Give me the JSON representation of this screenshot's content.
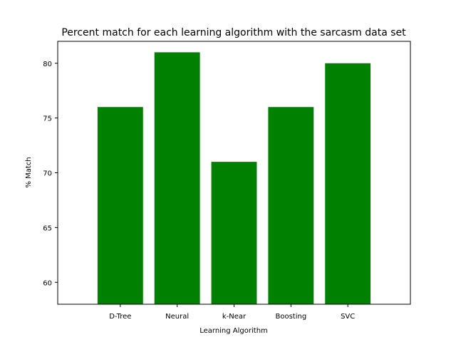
{
  "chart_data": {
    "type": "bar",
    "title": "Percent match for each learning algorithm with the sarcasm data set",
    "xlabel": "Learning Algorithm",
    "ylabel": "% Match",
    "categories": [
      "D-Tree",
      "Neural",
      "k-Near",
      "Boosting",
      "SVC"
    ],
    "values": [
      76,
      81,
      71,
      76,
      80
    ],
    "ylim": [
      58,
      82
    ],
    "yticks": [
      60,
      65,
      70,
      75,
      80
    ],
    "bar_color": "#008000",
    "grid": false,
    "legend": "none"
  }
}
